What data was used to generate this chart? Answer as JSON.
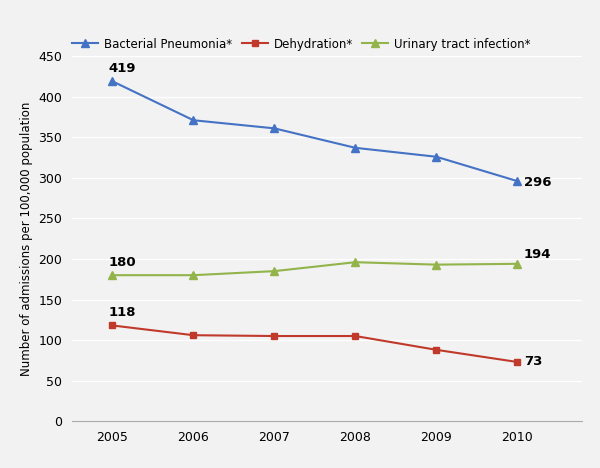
{
  "years": [
    2005,
    2006,
    2007,
    2008,
    2009,
    2010
  ],
  "bacterial_pneumonia": [
    419,
    371,
    361,
    337,
    326,
    296
  ],
  "dehydration": [
    118,
    106,
    105,
    105,
    88,
    73
  ],
  "urinary_tract_infection": [
    180,
    180,
    185,
    196,
    193,
    194
  ],
  "bp_color": "#4472C4",
  "dh_color": "#C0392B",
  "uti_color": "#92B44A",
  "bp_label": "Bacterial Pneumonia*",
  "dh_label": "Dehydration*",
  "uti_label": "Urinary tract infection*",
  "ylabel": "Number of admissions per 100,000 population",
  "ylim": [
    0,
    450
  ],
  "yticks": [
    0,
    50,
    100,
    150,
    200,
    250,
    300,
    350,
    400,
    450
  ],
  "bg_color": "#F2F2F2",
  "plot_bg_color": "#F2F2F2",
  "grid_color": "#FFFFFF",
  "annotation_fontsize": 9.5,
  "legend_fontsize": 8.5,
  "axis_label_fontsize": 8.5,
  "tick_fontsize": 9
}
